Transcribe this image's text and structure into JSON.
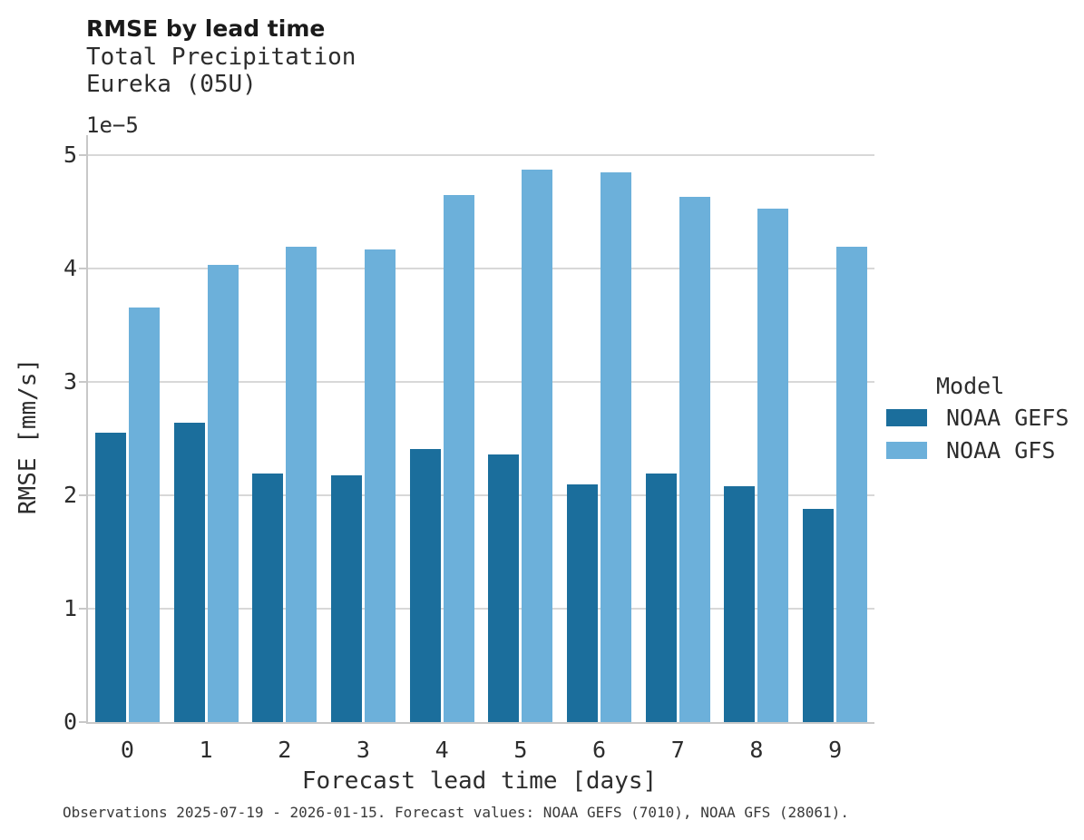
{
  "header": {
    "title": "RMSE by lead time",
    "subtitle_lines": [
      "Total Precipitation",
      "Eureka (05U)"
    ]
  },
  "axes": {
    "y_offset_label": "1e−5",
    "ylabel": "RMSE [mm/s]",
    "xlabel": "Forecast lead time [days]"
  },
  "legend": {
    "title": "Model",
    "entries": [
      {
        "label": "NOAA GEFS",
        "color": "#1b6e9c"
      },
      {
        "label": "NOAA GFS",
        "color": "#6cb0da"
      }
    ]
  },
  "caption": "Observations 2025-07-19 - 2026-01-15. Forecast values: NOAA GEFS (7010), NOAA GFS (28061).",
  "colors": {
    "gefs": "#1b6e9c",
    "gfs": "#6cb0da",
    "gridline": "#d8d8d8",
    "spine": "#c8c8c8",
    "text": "#2d2d2d"
  },
  "chart_data": {
    "type": "bar",
    "title": "RMSE by lead time",
    "subtitle": "Total Precipitation, Eureka (05U)",
    "xlabel": "Forecast lead time [days]",
    "ylabel": "RMSE [mm/s]",
    "y_scale_factor": "1e-5",
    "ylim": [
      0,
      5
    ],
    "yticks": [
      0,
      1,
      2,
      3,
      4,
      5
    ],
    "categories": [
      "0",
      "1",
      "2",
      "3",
      "4",
      "5",
      "6",
      "7",
      "8",
      "9"
    ],
    "series": [
      {
        "name": "NOAA GEFS",
        "color": "#1b6e9c",
        "values": [
          2.55,
          2.64,
          2.19,
          2.18,
          2.41,
          2.36,
          2.1,
          2.19,
          2.08,
          1.88
        ]
      },
      {
        "name": "NOAA GFS",
        "color": "#6cb0da",
        "values": [
          3.66,
          4.03,
          4.19,
          4.17,
          4.65,
          4.87,
          4.85,
          4.63,
          4.53,
          4.19
        ]
      }
    ],
    "legend_position": "right",
    "legend_title": "Model",
    "grid": "horizontal"
  }
}
